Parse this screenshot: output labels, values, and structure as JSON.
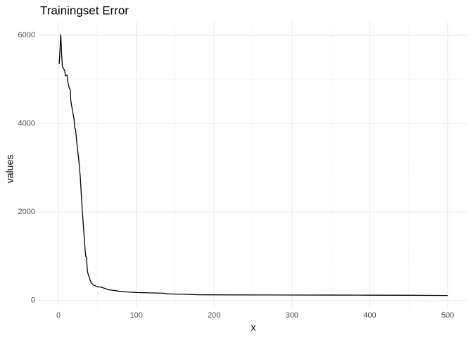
{
  "chart_data": {
    "type": "line",
    "title": "Trainingset Error",
    "xlabel": "x",
    "ylabel": "values",
    "x": [
      1,
      3,
      4,
      5,
      8,
      9,
      11,
      12,
      14,
      15,
      16,
      18,
      20,
      21,
      22,
      24,
      26,
      28,
      30,
      32,
      34,
      35,
      36,
      37,
      38,
      40,
      42,
      45,
      50,
      55,
      60,
      65,
      70,
      80,
      90,
      100,
      120,
      135,
      140,
      160,
      180,
      200,
      250,
      300,
      350,
      400,
      450,
      500
    ],
    "series": [
      {
        "color": "#000000",
        "values": [
          5350,
          6020,
          5600,
          5300,
          5200,
          5080,
          5100,
          4950,
          4800,
          4780,
          4500,
          4300,
          4100,
          3900,
          3870,
          3500,
          3200,
          2800,
          2200,
          1700,
          1200,
          1000,
          980,
          700,
          600,
          500,
          400,
          350,
          310,
          300,
          270,
          240,
          230,
          205,
          190,
          180,
          170,
          165,
          150,
          140,
          130,
          128,
          125,
          123,
          122,
          120,
          118,
          113
        ]
      }
    ],
    "xlim": [
      -25,
      525
    ],
    "ylim": [
      -180,
      6320
    ],
    "xticks": [
      0,
      100,
      200,
      300,
      400,
      500
    ],
    "yticks": [
      0,
      2000,
      4000,
      6000
    ],
    "x_minor_gridlines": [
      50,
      150,
      250,
      350,
      450
    ],
    "y_minor_gridlines": [
      1000,
      3000,
      5000
    ],
    "grid": true
  }
}
